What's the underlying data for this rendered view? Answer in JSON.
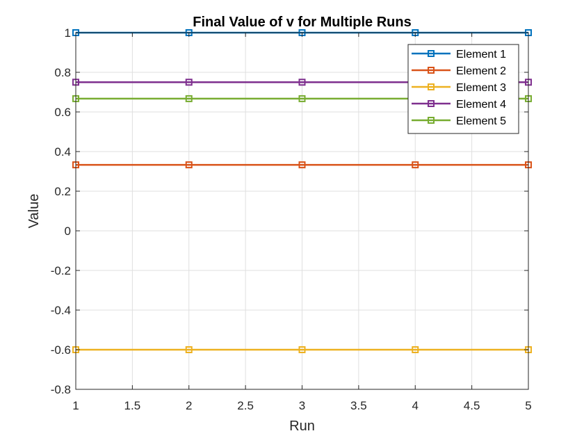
{
  "chart_data": {
    "type": "line",
    "title": "Final Value of v for Multiple Runs",
    "xlabel": "Run",
    "ylabel": "Value",
    "xlim": [
      1,
      5
    ],
    "ylim": [
      -0.8,
      1
    ],
    "xticks": [
      1,
      1.5,
      2,
      2.5,
      3,
      3.5,
      4,
      4.5,
      5
    ],
    "yticks": [
      -0.8,
      -0.6,
      -0.4,
      -0.2,
      0,
      0.2,
      0.4,
      0.6,
      0.8,
      1
    ],
    "xtick_labels": [
      "1",
      "1.5",
      "2",
      "2.5",
      "3",
      "3.5",
      "4",
      "4.5",
      "5"
    ],
    "ytick_labels": [
      "-0.8",
      "-0.6",
      "-0.4",
      "-0.2",
      "0",
      "0.2",
      "0.4",
      "0.6",
      "0.8",
      "1"
    ],
    "grid": true,
    "legend_position": "top-right",
    "x": [
      1,
      2,
      3,
      4,
      5
    ],
    "series": [
      {
        "name": "Element 1",
        "color": "#0072BD",
        "marker": "square",
        "values": [
          1,
          1,
          1,
          1,
          1
        ]
      },
      {
        "name": "Element 2",
        "color": "#D95319",
        "marker": "square",
        "values": [
          0.333,
          0.333,
          0.333,
          0.333,
          0.333
        ]
      },
      {
        "name": "Element 3",
        "color": "#EDB120",
        "marker": "square",
        "values": [
          -0.6,
          -0.6,
          -0.6,
          -0.6,
          -0.6
        ]
      },
      {
        "name": "Element 4",
        "color": "#7E2F8E",
        "marker": "square",
        "values": [
          0.75,
          0.75,
          0.75,
          0.75,
          0.75
        ]
      },
      {
        "name": "Element 5",
        "color": "#77AC30",
        "marker": "square",
        "values": [
          0.667,
          0.667,
          0.667,
          0.667,
          0.667
        ]
      }
    ]
  }
}
